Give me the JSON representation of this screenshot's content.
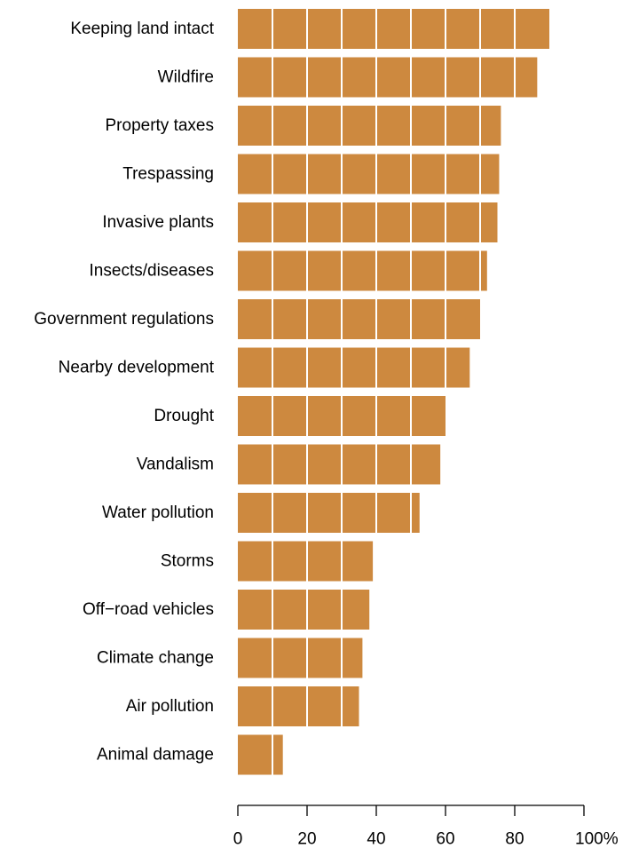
{
  "chart_data": {
    "type": "bar",
    "orientation": "horizontal",
    "categories": [
      "Keeping land intact",
      "Wildfire",
      "Property taxes",
      "Trespassing",
      "Invasive plants",
      "Insects/diseases",
      "Government regulations",
      "Nearby development",
      "Drought",
      "Vandalism",
      "Water pollution",
      "Storms",
      "Off−road vehicles",
      "Climate change",
      "Air pollution",
      "Animal damage"
    ],
    "values": [
      90,
      86.5,
      76,
      75.5,
      75,
      72,
      70,
      67,
      60,
      58.5,
      52.5,
      39,
      38,
      36,
      35,
      13
    ],
    "xlim": [
      0,
      100
    ],
    "ticks": [
      0,
      20,
      40,
      60,
      80,
      100
    ],
    "tick_labels": [
      "0",
      "20",
      "40",
      "60",
      "80",
      "100%"
    ],
    "vertical_gridlines_inside_bars": [
      10,
      20,
      30,
      40,
      50,
      60,
      70,
      80
    ],
    "bar_color": "#cd893f",
    "grid_color": "#ffffff",
    "title": "",
    "xlabel": "",
    "ylabel": ""
  }
}
